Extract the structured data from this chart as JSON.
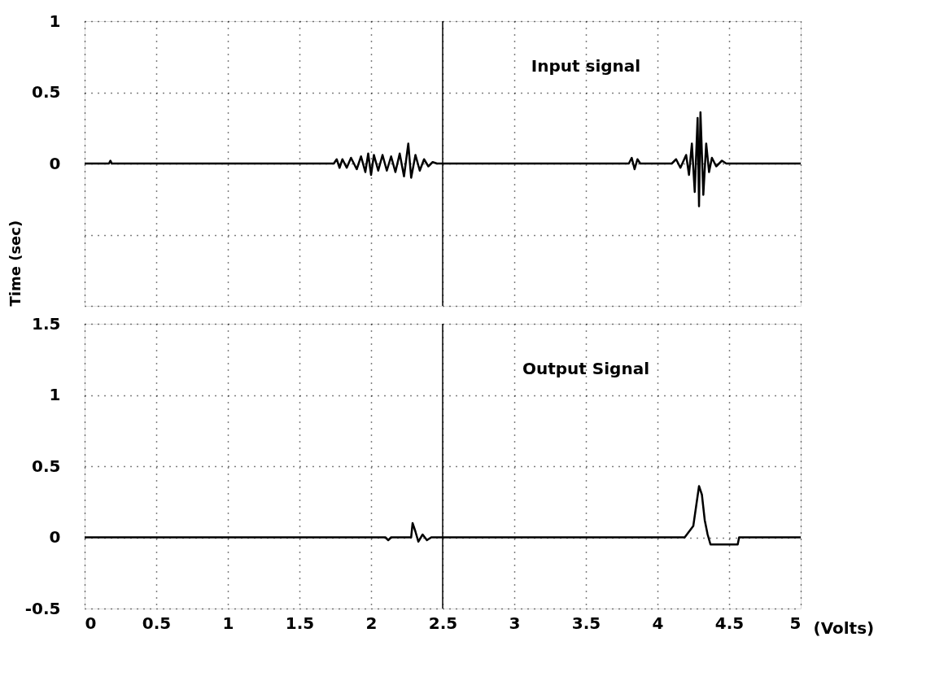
{
  "chart_data": [
    {
      "type": "line",
      "ylabel": "Time (sec)",
      "annotations": [
        "Input signal"
      ],
      "tick_labels": "y",
      "grid": true,
      "line_style": "solid",
      "marker": "none",
      "xlim": [
        0,
        5
      ],
      "xticks": [
        0,
        0.5,
        1,
        1.5,
        2,
        2.5,
        3,
        3.5,
        4,
        4.5,
        5
      ],
      "ylim": [
        -1,
        1
      ],
      "yticks": [
        {
          "value": -1,
          "label": null
        },
        {
          "value": -0.5,
          "label": null
        },
        0,
        0.5,
        1
      ],
      "ref_lines": [
        {
          "axis": "x",
          "value": 2.5,
          "label": null,
          "color": "#000000"
        }
      ],
      "series": [
        {
          "color": "#000000",
          "x": [
            0,
            0.17,
            0.18,
            0.19,
            1.74,
            1.76,
            1.78,
            1.8,
            1.83,
            1.86,
            1.9,
            1.93,
            1.96,
            1.98,
            2.0,
            2.02,
            2.05,
            2.08,
            2.11,
            2.14,
            2.17,
            2.2,
            2.23,
            2.26,
            2.28,
            2.31,
            2.34,
            2.37,
            2.4,
            2.43,
            2.46,
            3.8,
            3.82,
            3.84,
            3.86,
            3.88,
            4.1,
            4.13,
            4.16,
            4.2,
            4.22,
            4.24,
            4.26,
            4.28,
            4.29,
            4.3,
            4.32,
            4.34,
            4.36,
            4.38,
            4.41,
            4.45,
            4.48,
            5
          ],
          "values": [
            0,
            0,
            0.02,
            0,
            0,
            0.03,
            -0.03,
            0.03,
            -0.03,
            0.04,
            -0.04,
            0.05,
            -0.06,
            0.07,
            -0.08,
            0.06,
            -0.05,
            0.06,
            -0.05,
            0.05,
            -0.06,
            0.07,
            -0.09,
            0.14,
            -0.1,
            0.06,
            -0.05,
            0.03,
            -0.02,
            0.01,
            0,
            0,
            0.04,
            -0.04,
            0.03,
            0,
            0,
            0.03,
            -0.03,
            0.06,
            -0.08,
            0.14,
            -0.2,
            0.32,
            -0.3,
            0.36,
            -0.22,
            0.14,
            -0.06,
            0.04,
            -0.02,
            0.02,
            0,
            0
          ]
        }
      ]
    },
    {
      "type": "line",
      "xlabel": "(Volts)",
      "annotations": [
        "Output Signal"
      ],
      "grid": true,
      "line_style": "solid",
      "marker": "none",
      "xlim": [
        0,
        5
      ],
      "xticks": [
        0,
        0.5,
        1,
        1.5,
        2,
        2.5,
        3,
        3.5,
        4,
        4.5,
        5
      ],
      "ylim": [
        -0.5,
        1.5
      ],
      "yticks": [
        -0.5,
        0,
        0.5,
        1,
        1.5
      ],
      "ref_lines": [
        {
          "axis": "x",
          "value": 2.5,
          "label": null,
          "color": "#000000"
        }
      ],
      "series": [
        {
          "color": "#000000",
          "x": [
            0,
            2.1,
            2.12,
            2.14,
            2.28,
            2.29,
            2.31,
            2.33,
            2.36,
            2.39,
            2.42,
            4.19,
            4.22,
            4.25,
            4.27,
            4.29,
            4.31,
            4.33,
            4.35,
            4.37,
            4.5,
            4.56,
            4.57,
            5
          ],
          "values": [
            0,
            0,
            -0.02,
            0,
            0,
            0.1,
            0.04,
            -0.03,
            0.02,
            -0.02,
            0,
            0,
            0.04,
            0.08,
            0.22,
            0.36,
            0.3,
            0.12,
            0.02,
            -0.05,
            -0.05,
            -0.05,
            0,
            0
          ]
        }
      ]
    }
  ]
}
